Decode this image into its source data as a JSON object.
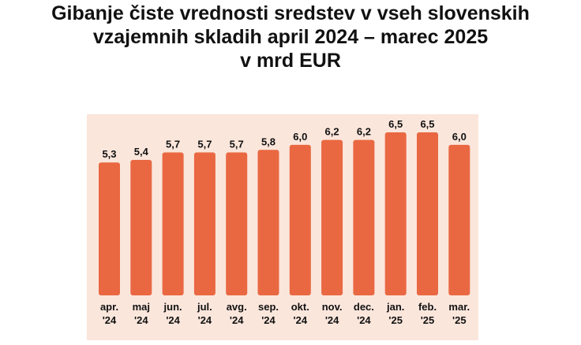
{
  "chart_data": {
    "type": "bar",
    "title_lines": [
      "Gibanje čiste vrednosti sredstev v vseh slovenskih",
      "vzajemnih skladih april 2024 – marec 2025",
      "v mrd EUR"
    ],
    "categories": [
      [
        "apr.",
        "'24"
      ],
      [
        "maj",
        "'24"
      ],
      [
        "jun.",
        "'24"
      ],
      [
        "jul.",
        "'24"
      ],
      [
        "avg.",
        "'24"
      ],
      [
        "sep.",
        "'24"
      ],
      [
        "okt.",
        "'24"
      ],
      [
        "nov.",
        "'24"
      ],
      [
        "dec.",
        "'24"
      ],
      [
        "jan.",
        "'25"
      ],
      [
        "feb.",
        "'25"
      ],
      [
        "mar.",
        "'25"
      ]
    ],
    "values": [
      5.3,
      5.4,
      5.7,
      5.7,
      5.7,
      5.8,
      6.0,
      6.2,
      6.2,
      6.5,
      6.5,
      6.0
    ],
    "value_labels": [
      "5,3",
      "5,4",
      "5,7",
      "5,7",
      "5,7",
      "5,8",
      "6,0",
      "6,2",
      "6,2",
      "6,5",
      "6,5",
      "6,0"
    ],
    "ylim": [
      0,
      6.5
    ],
    "grid": false,
    "legend": "none",
    "colors": {
      "bar": "#e96842",
      "plot_background": "#fbe6dc",
      "text": "#111111"
    }
  }
}
